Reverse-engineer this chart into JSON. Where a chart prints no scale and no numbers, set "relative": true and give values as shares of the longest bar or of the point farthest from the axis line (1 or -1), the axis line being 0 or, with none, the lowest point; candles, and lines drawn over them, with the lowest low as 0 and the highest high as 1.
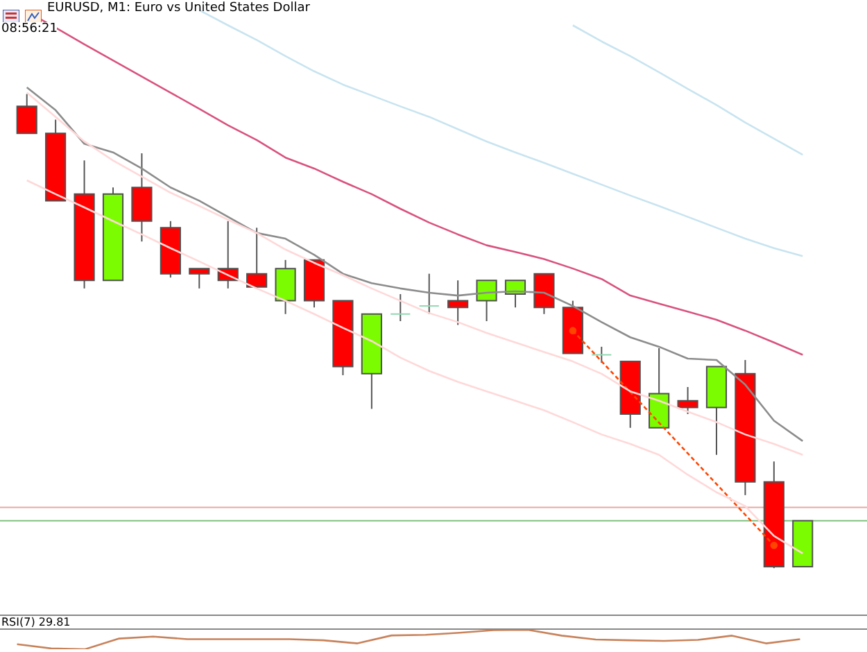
{
  "chart_data": [
    {
      "type": "candlestick",
      "title": "EURUSD, M1: Euro vs United States Dollar",
      "annotations": [
        "08:56:21"
      ],
      "relative": true,
      "legend": false,
      "marker": "none",
      "categories": [
        null,
        null,
        null,
        null,
        null,
        null,
        null,
        null,
        null,
        null,
        null,
        null,
        null,
        null,
        null,
        null,
        null,
        null,
        null,
        null,
        null,
        null,
        null,
        null,
        null,
        null,
        null,
        null
      ],
      "ohlc": [
        [
          0.974,
          1,
          0.917,
          0.917
        ],
        [
          0.917,
          0.946,
          0.775,
          0.775
        ],
        [
          0.789,
          0.86,
          0.59,
          0.607
        ],
        [
          0.607,
          0.803,
          0.607,
          0.789
        ],
        [
          0.803,
          0.875,
          0.689,
          0.732
        ],
        [
          0.718,
          0.732,
          0.613,
          0.621
        ],
        [
          0.632,
          0.632,
          0.59,
          0.621
        ],
        [
          0.632,
          0.732,
          0.59,
          0.607
        ],
        [
          0.621,
          0.718,
          0.593,
          0.593
        ],
        [
          0.564,
          0.65,
          0.536,
          0.632
        ],
        [
          0.65,
          0.65,
          0.55,
          0.564
        ],
        [
          0.564,
          0.564,
          0.407,
          0.425
        ],
        [
          0.41,
          0.536,
          0.336,
          0.536
        ],
        [
          0.536,
          0.578,
          0.521,
          0.536
        ],
        [
          0.553,
          0.621,
          0.536,
          0.553
        ],
        [
          0.564,
          0.607,
          0.513,
          0.55
        ],
        [
          0.564,
          0.607,
          0.521,
          0.607
        ],
        [
          0.578,
          0.607,
          0.55,
          0.607
        ],
        [
          0.621,
          0.621,
          0.536,
          0.55
        ],
        [
          0.55,
          0.564,
          0.453,
          0.453
        ],
        [
          0.45,
          0.467,
          0.433,
          0.45
        ],
        [
          0.436,
          0.436,
          0.296,
          0.325
        ],
        [
          0.296,
          0.464,
          0.296,
          0.368
        ],
        [
          0.353,
          0.382,
          0.325,
          0.339
        ],
        [
          0.339,
          0.425,
          0.239,
          0.425
        ],
        [
          0.41,
          0.439,
          0.154,
          0.182
        ],
        [
          0.182,
          0.225,
          0,
          0.003
        ],
        [
          0.003,
          0.1,
          0.003,
          0.1
        ]
      ],
      "colors": [
        "#ff0000",
        "#ff0000",
        "#ff0000",
        "#7cfc00",
        "#ff0000",
        "#ff0000",
        "#ff0000",
        "#ff0000",
        "#ff0000",
        "#7cfc00",
        "#ff0000",
        "#ff0000",
        "#7cfc00",
        "#90d8b0",
        "#90d8b0",
        "#ff0000",
        "#7cfc00",
        "#7cfc00",
        "#ff0000",
        "#ff0000",
        "#90d8b0",
        "#ff0000",
        "#7cfc00",
        "#ff0000",
        "#7cfc00",
        "#ff0000",
        "#ff0000",
        "#7cfc00"
      ],
      "series": [
        {
          "type": "line",
          "color": "#c8e4f0",
          "values": [
            null,
            null,
            null,
            null,
            null,
            null,
            null,
            null,
            null,
            null,
            null,
            null,
            null,
            null,
            null,
            null,
            null,
            null,
            null,
            1.145,
            1.111,
            1.08,
            1.046,
            1.011,
            0.977,
            0.94,
            0.906,
            0.872
          ]
        },
        {
          "type": "line",
          "color": "#c8e4f0",
          "values": [
            null,
            null,
            null,
            null,
            null,
            null,
            1.177,
            1.145,
            1.114,
            1.08,
            1.048,
            1.02,
            0.997,
            0.974,
            0.952,
            0.926,
            0.9,
            0.877,
            0.855,
            0.832,
            0.809,
            0.786,
            0.764,
            0.741,
            0.718,
            0.695,
            0.675,
            0.658
          ]
        },
        {
          "type": "line",
          "color": "#d9527e",
          "values": [
            1.174,
            1.14,
            1.105,
            1.071,
            1.037,
            1.003,
            0.969,
            0.934,
            0.903,
            0.866,
            0.843,
            0.815,
            0.789,
            0.758,
            0.729,
            0.704,
            0.681,
            0.667,
            0.652,
            0.632,
            0.61,
            0.575,
            0.558,
            0.541,
            0.524,
            0.501,
            0.476,
            0.45
          ]
        },
        {
          "type": "line",
          "color": "#ffd8d8",
          "values": [
            1.003,
            0.952,
            0.9,
            0.86,
            0.826,
            0.792,
            0.764,
            0.735,
            0.707,
            0.672,
            0.644,
            0.618,
            0.59,
            0.564,
            0.538,
            0.519,
            0.496,
            0.476,
            0.456,
            0.436,
            0.41,
            0.373,
            0.353,
            0.33,
            0.308,
            0.282,
            0.262,
            0.239
          ]
        },
        {
          "type": "line",
          "color": "#ffd8d8",
          "values": [
            0.818,
            0.789,
            0.761,
            0.732,
            0.704,
            0.675,
            0.647,
            0.618,
            0.59,
            0.564,
            0.536,
            0.507,
            0.479,
            0.444,
            0.416,
            0.393,
            0.373,
            0.353,
            0.333,
            0.308,
            0.282,
            0.262,
            0.239,
            0.197,
            0.16,
            0.131,
            0.068,
            0.031
          ]
        },
        {
          "type": "line",
          "color": "#8c8c8c",
          "values": [
            1.014,
            0.966,
            0.895,
            0.877,
            0.843,
            0.803,
            0.775,
            0.741,
            0.707,
            0.695,
            0.661,
            0.621,
            0.601,
            0.59,
            0.581,
            0.575,
            0.581,
            0.584,
            0.581,
            0.553,
            0.519,
            0.487,
            0.467,
            0.442,
            0.439,
            0.387,
            0.311,
            0.268
          ]
        },
        {
          "type": "line",
          "color": "#ff4500",
          "line_style": "dashed",
          "marker": "circle",
          "values": [
            null,
            null,
            null,
            null,
            null,
            null,
            null,
            null,
            null,
            null,
            null,
            null,
            null,
            null,
            null,
            null,
            null,
            null,
            null,
            0.501,
            null,
            null,
            null,
            null,
            null,
            null,
            0.048,
            null
          ]
        }
      ],
      "ref_lines": [
        {
          "axis": "y",
          "value": 0.128,
          "color": "#e8a8a0"
        },
        {
          "axis": "y",
          "value": 0.1,
          "color": "#80c080"
        }
      ]
    },
    {
      "type": "line",
      "title": "RSI(7) 29.81",
      "relative": true,
      "legend": false,
      "marker": "none",
      "color": "#c8825a",
      "categories": [
        null,
        null,
        null,
        null,
        null,
        null,
        null,
        null,
        null,
        null,
        null,
        null,
        null,
        null,
        null,
        null,
        null,
        null,
        null,
        null,
        null,
        null,
        null,
        null
      ],
      "values": [
        0.26,
        0.04,
        0,
        0.55,
        0.65,
        0.52,
        0.52,
        0.52,
        0.52,
        0.46,
        0.3,
        0.71,
        0.74,
        0.85,
        0.98,
        1,
        0.7,
        0.5,
        0.46,
        0.43,
        0.48,
        0.7,
        0.3,
        0.52
      ]
    }
  ]
}
